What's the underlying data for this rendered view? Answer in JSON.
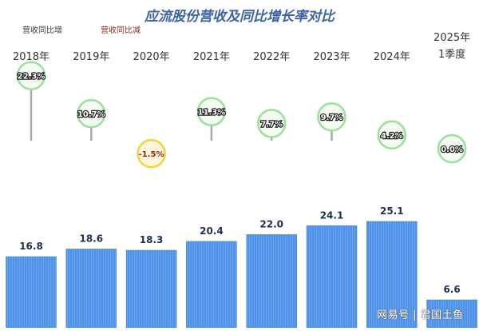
{
  "chart_data": {
    "type": "bar",
    "title": "应流股份营收及同比增长率对比",
    "legend": {
      "placement": "top-left",
      "items": [
        {
          "label": "营收同比增",
          "color": "#3a3a3a",
          "marker": "light-green-circle"
        },
        {
          "label": "营收同比减",
          "color": "#8b2a1c",
          "marker": "yellow-circle"
        }
      ]
    },
    "categories": [
      [
        "2018年"
      ],
      [
        "2019年"
      ],
      [
        "2020年"
      ],
      [
        "2021年"
      ],
      [
        "2022年"
      ],
      [
        "2023年"
      ],
      [
        "2024年"
      ],
      [
        "2025年",
        "1季度"
      ]
    ],
    "series": [
      {
        "values": [
          16.8,
          18.6,
          18.3,
          20.4,
          22.0,
          24.1,
          25.1,
          6.6
        ]
      },
      {
        "values": [
          22.3,
          10.7,
          -1.5,
          11.3,
          7.7,
          9.7,
          4.2,
          0.0
        ],
        "unit": "%"
      }
    ],
    "revenue_labels": [
      "16.8",
      "18.6",
      "18.3",
      "20.4",
      "22.0",
      "24.1",
      "25.1",
      "6.6"
    ],
    "growth_labels": [
      "22.3%",
      "10.7%",
      "-1.5%",
      "11.3%",
      "7.7%",
      "9.7%",
      "4.2%",
      "0.0%"
    ],
    "bar_color": "#4f91e6",
    "growth_positive_color": "#9be09b",
    "growth_negative_color": "#f4d23c",
    "grid": false
  },
  "watermark": "网易号 | 君国土鱼"
}
